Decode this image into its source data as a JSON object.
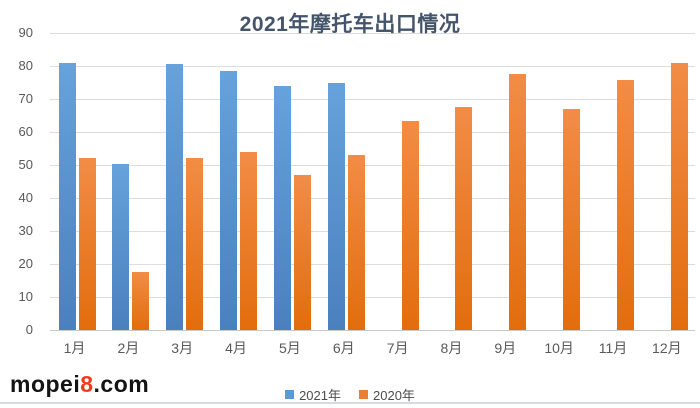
{
  "title": "2021年摩托车出口情况",
  "watermark": {
    "prefix": "mopei",
    "highlight": "8",
    "suffix": ".com"
  },
  "legend": {
    "items": [
      {
        "label": "2021年",
        "color": "#5B9BD5"
      },
      {
        "label": "2020年",
        "color": "#ED7D31"
      }
    ]
  },
  "colors": {
    "title_text": "#44546A",
    "axis_text": "#595959",
    "gridline": "#dcdcdc",
    "blue_series": "#5B9BD5",
    "orange_series": "#ED7D31",
    "watermark_highlight": "#ee3a1c"
  },
  "chart_data": {
    "type": "bar",
    "title": "2021年摩托车出口情况",
    "categories": [
      "1月",
      "2月",
      "3月",
      "4月",
      "5月",
      "6月",
      "7月",
      "8月",
      "9月",
      "10月",
      "11月",
      "12月"
    ],
    "series": [
      {
        "name": "2021年",
        "color": "#5B9BD5",
        "fill_top": "#66A2DB",
        "fill_bottom": "#4A80BE",
        "values": [
          81,
          50.3,
          80.5,
          78.5,
          74,
          75,
          null,
          null,
          null,
          null,
          null,
          null
        ]
      },
      {
        "name": "2020年",
        "color": "#ED7D31",
        "fill_top": "#F28C46",
        "fill_bottom": "#E26D0D",
        "values": [
          52,
          17.7,
          52,
          54,
          47,
          53,
          63.2,
          67.7,
          77.7,
          67,
          75.7,
          81
        ]
      }
    ],
    "xlabel": "",
    "ylabel": "",
    "ylim": [
      0,
      90
    ],
    "ytick_step": 10,
    "grid": "horizontal-only",
    "legend_position": "bottom-center"
  }
}
